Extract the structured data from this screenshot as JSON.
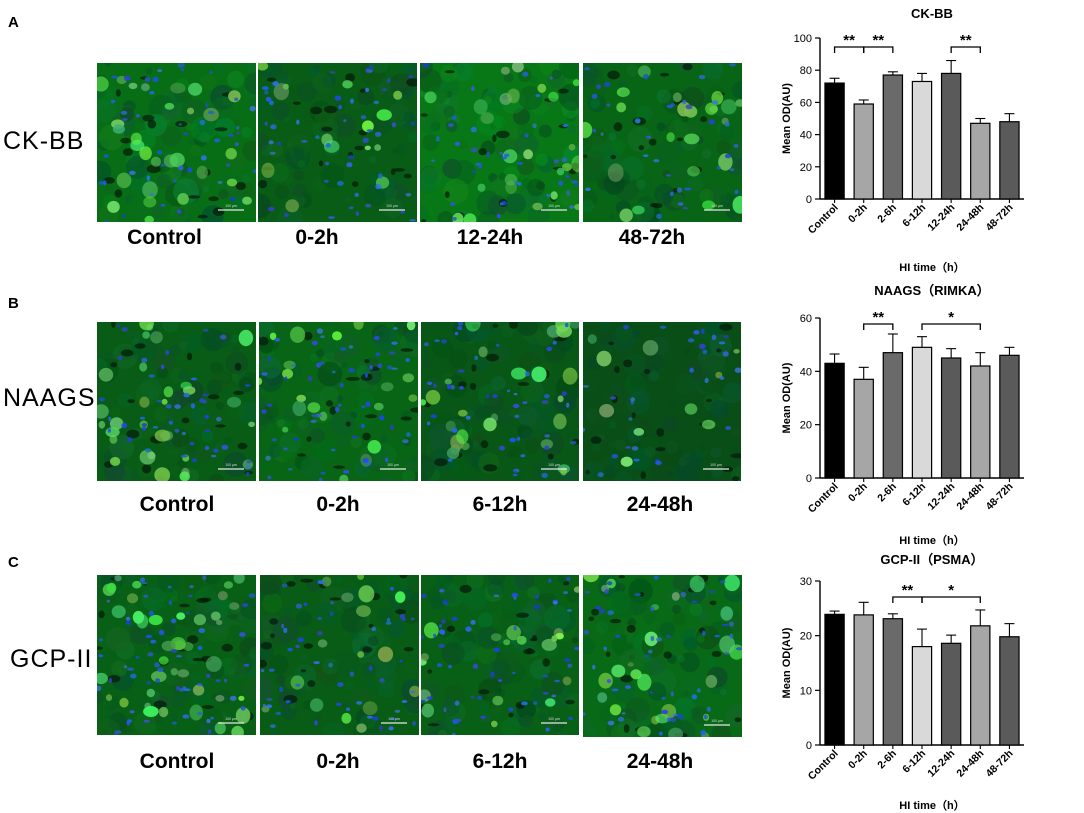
{
  "panels": [
    {
      "letter": "A",
      "marker": "CK-BB",
      "image_labels": [
        "Control",
        "0-2h",
        "12-24h",
        "48-72h"
      ],
      "scalebar_text": "100 μm"
    },
    {
      "letter": "B",
      "marker": "NAAGS",
      "image_labels": [
        "Control",
        "0-2h",
        "6-12h",
        "24-48h"
      ],
      "scalebar_text": "100 μm"
    },
    {
      "letter": "C",
      "marker": "GCP-II",
      "image_labels": [
        "Control",
        "0-2h",
        "6-12h",
        "24-48h"
      ],
      "scalebar_text": "100 μm"
    }
  ],
  "chart_data": [
    {
      "type": "bar",
      "title": "CK-BB",
      "xlabel": "HI time（h）",
      "ylabel": "Mean OD(AU)",
      "ylim": [
        0,
        100
      ],
      "yticks": [
        0,
        20,
        40,
        60,
        80,
        100
      ],
      "categories": [
        "Control",
        "0-2h",
        "2-6h",
        "6-12h",
        "12-24h",
        "24-48h",
        "48-72h"
      ],
      "values": [
        72,
        59,
        77,
        73,
        78,
        47,
        48
      ],
      "errors": [
        3,
        2.5,
        2,
        5,
        8,
        3,
        5
      ],
      "bar_colors": [
        "#000000",
        "#a6a6a6",
        "#6a6a6a",
        "#d9d9d9",
        "#5a5a5a",
        "#a6a6a6",
        "#5a5a5a"
      ],
      "significance": [
        {
          "from": 0,
          "to": 1,
          "label": "**"
        },
        {
          "from": 1,
          "to": 2,
          "label": "**"
        },
        {
          "from": 4,
          "to": 5,
          "label": "**"
        }
      ]
    },
    {
      "type": "bar",
      "title": "NAAGS（RIMKA）",
      "xlabel": "HI time（h）",
      "ylabel": "Mean OD(AU)",
      "ylim": [
        0,
        60
      ],
      "yticks": [
        0,
        20,
        40,
        60
      ],
      "categories": [
        "Control",
        "0-2h",
        "2-6h",
        "6-12h",
        "12-24h",
        "24-48h",
        "48-72h"
      ],
      "values": [
        43,
        37,
        47,
        49,
        45,
        42,
        46
      ],
      "errors": [
        3.5,
        4.5,
        7,
        4,
        3.5,
        5,
        3
      ],
      "bar_colors": [
        "#000000",
        "#a6a6a6",
        "#6a6a6a",
        "#d9d9d9",
        "#5a5a5a",
        "#a6a6a6",
        "#5a5a5a"
      ],
      "significance": [
        {
          "from": 1,
          "to": 2,
          "label": "**"
        },
        {
          "from": 3,
          "to": 5,
          "label": "*"
        }
      ]
    },
    {
      "type": "bar",
      "title": "GCP-II（PSMA）",
      "xlabel": "HI time（h）",
      "ylabel": "Mean OD(AU)",
      "ylim": [
        0,
        30
      ],
      "yticks": [
        0,
        10,
        20,
        30
      ],
      "categories": [
        "Control",
        "0-2h",
        "2-6h",
        "6-12h",
        "12-24h",
        "24-48h",
        "48-72h"
      ],
      "values": [
        23.9,
        23.8,
        23.1,
        18,
        18.6,
        21.8,
        19.8
      ],
      "errors": [
        0.6,
        2.3,
        0.9,
        3.2,
        1.5,
        2.9,
        2.4
      ],
      "bar_colors": [
        "#000000",
        "#a6a6a6",
        "#6a6a6a",
        "#d9d9d9",
        "#5a5a5a",
        "#a6a6a6",
        "#5a5a5a"
      ],
      "significance": [
        {
          "from": 2,
          "to": 3,
          "label": "**"
        },
        {
          "from": 3,
          "to": 5,
          "label": "*"
        }
      ]
    }
  ]
}
